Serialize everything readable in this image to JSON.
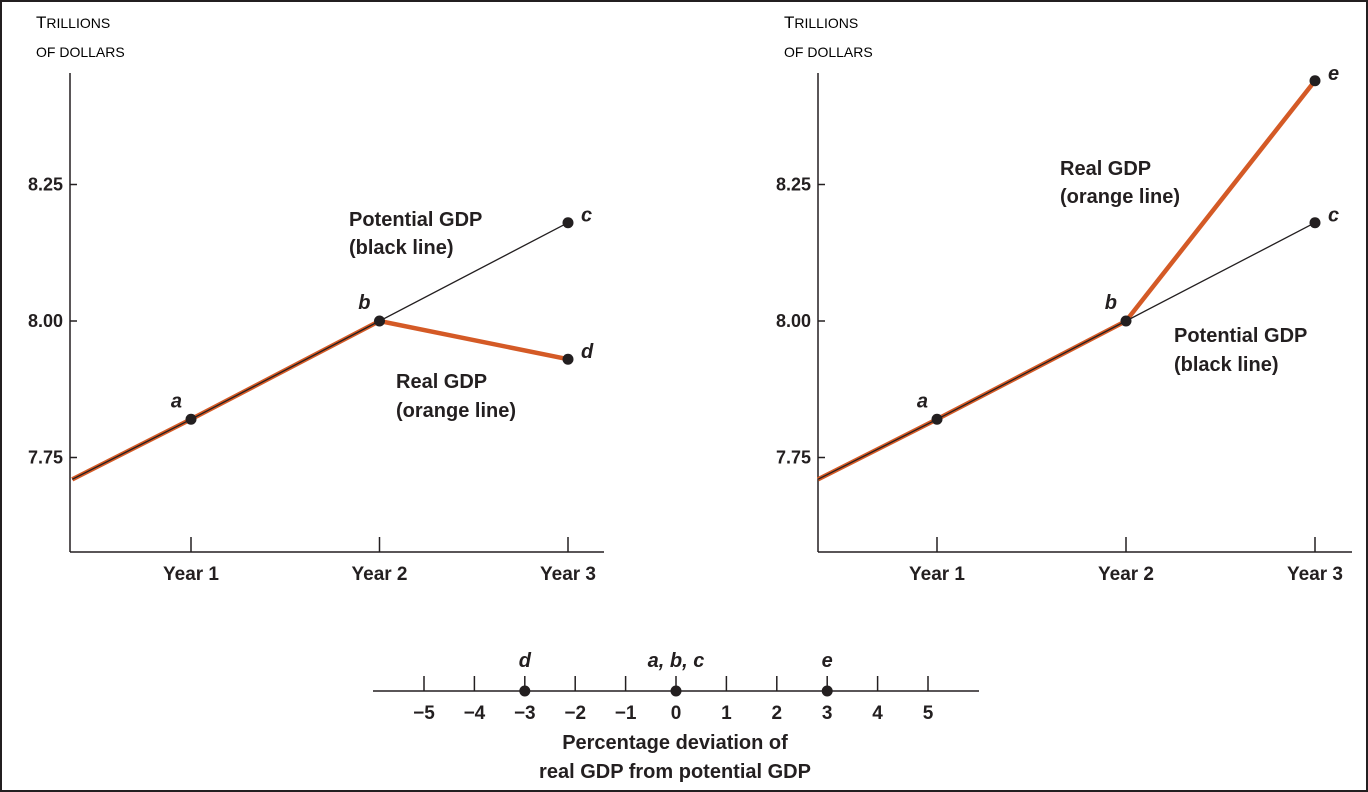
{
  "chart_data": [
    {
      "type": "line",
      "ylabel": [
        "Trillions",
        "of dollars"
      ],
      "categories": [
        "Year 1",
        "Year 2",
        "Year 3"
      ],
      "yticks": [
        "8.25",
        "8.00",
        "7.75"
      ],
      "ytick_values": [
        8.25,
        8.0,
        7.75
      ],
      "series": [
        {
          "key": "potential",
          "color": "#231f20",
          "x": [
            0.37,
            1,
            2,
            3
          ],
          "values": [
            7.71,
            7.82,
            8.0,
            8.18
          ]
        },
        {
          "key": "real",
          "color": "#d45a26",
          "x": [
            0.37,
            1,
            2,
            3
          ],
          "values": [
            7.71,
            7.82,
            8.0,
            7.93
          ]
        }
      ],
      "points": [
        {
          "label": "a",
          "x": 1,
          "y": 7.82
        },
        {
          "label": "b",
          "x": 2,
          "y": 8.0
        },
        {
          "label": "c",
          "x": 3,
          "y": 8.18
        },
        {
          "label": "d",
          "x": 3,
          "y": 7.93
        }
      ],
      "annotations": [
        {
          "lines": [
            "Potential GDP",
            "(black line)"
          ]
        },
        {
          "lines": [
            "Real GDP",
            "(orange line)"
          ]
        }
      ]
    },
    {
      "type": "line",
      "ylabel": [
        "Trillions",
        "of dollars"
      ],
      "categories": [
        "Year 1",
        "Year 2",
        "Year 3"
      ],
      "yticks": [
        "8.25",
        "8.00",
        "7.75"
      ],
      "ytick_values": [
        8.25,
        8.0,
        7.75
      ],
      "series": [
        {
          "key": "potential",
          "color": "#231f20",
          "x": [
            0.37,
            1,
            2,
            3
          ],
          "values": [
            7.71,
            7.82,
            8.0,
            8.18
          ]
        },
        {
          "key": "real",
          "color": "#d45a26",
          "x": [
            0.37,
            1,
            2,
            3
          ],
          "values": [
            7.71,
            7.82,
            8.0,
            8.44
          ]
        }
      ],
      "points": [
        {
          "label": "a",
          "x": 1,
          "y": 7.82
        },
        {
          "label": "b",
          "x": 2,
          "y": 8.0
        },
        {
          "label": "c",
          "x": 3,
          "y": 8.18
        },
        {
          "label": "e",
          "x": 3,
          "y": 8.44
        }
      ],
      "annotations": [
        {
          "lines": [
            "Real GDP",
            "(orange line)"
          ]
        },
        {
          "lines": [
            "Potential GDP",
            "(black line)"
          ]
        }
      ]
    },
    {
      "type": "scatter",
      "ticks": [
        "−5",
        "−4",
        "−3",
        "−2",
        "−1",
        "0",
        "1",
        "2",
        "3",
        "4",
        "5"
      ],
      "tick_values": [
        -5,
        -4,
        -3,
        -2,
        -1,
        0,
        1,
        2,
        3,
        4,
        5
      ],
      "points": [
        {
          "label": "d",
          "value": -3
        },
        {
          "label": "a, b, c",
          "value": 0
        },
        {
          "label": "e",
          "value": 3
        }
      ],
      "xlabel": [
        "Percentage deviation of",
        "real GDP from potential GDP"
      ]
    }
  ]
}
